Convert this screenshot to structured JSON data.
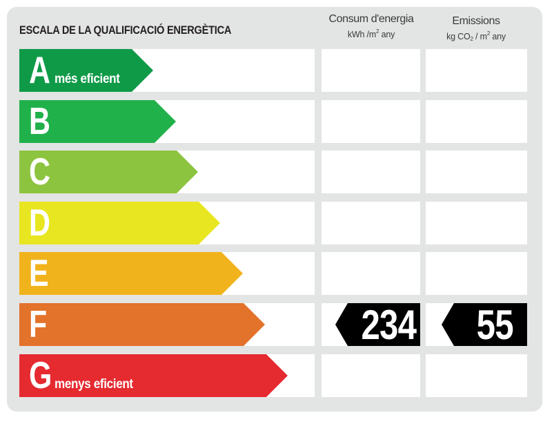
{
  "title": "ESCALA DE LA QUALIFICACIÓ ENERGÈTICA",
  "columns": {
    "energy": {
      "title": "Consum d'energia",
      "unit_main": "kWh /m",
      "unit_sup": "2",
      "unit_tail": " any"
    },
    "emissions": {
      "title": "Emissions",
      "unit_kg": "kg CO",
      "unit_sub": "2",
      "unit_mid": " / m",
      "unit_sup": "2",
      "unit_tail": " any"
    }
  },
  "ratings": [
    {
      "letter": "A",
      "label": "més eficient",
      "color": "#0f9a48"
    },
    {
      "letter": "B",
      "label": "",
      "color": "#21b14b"
    },
    {
      "letter": "C",
      "label": "",
      "color": "#8dc43f"
    },
    {
      "letter": "D",
      "label": "",
      "color": "#e8e621"
    },
    {
      "letter": "E",
      "label": "",
      "color": "#f1b31c"
    },
    {
      "letter": "F",
      "label": "",
      "color": "#e3722a"
    },
    {
      "letter": "G",
      "label": "menys eficient",
      "color": "#e52a30"
    }
  ],
  "current": {
    "rating": "F",
    "energy_value": "234",
    "emissions_value": "55"
  }
}
